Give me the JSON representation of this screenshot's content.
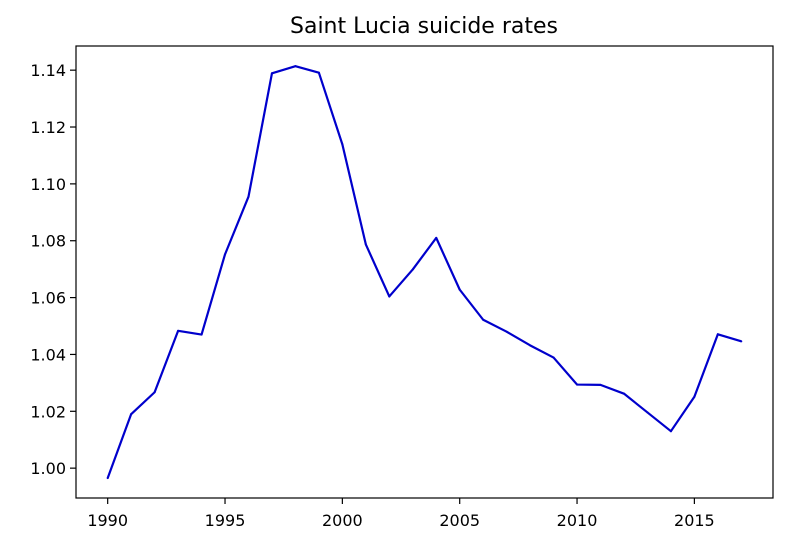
{
  "chart_data": {
    "type": "line",
    "title": "Saint Lucia suicide rates",
    "xlabel": "",
    "ylabel": "",
    "xlim": [
      1988.65,
      2018.35
    ],
    "ylim": [
      0.9895,
      1.1485
    ],
    "xticks": [
      1990,
      1995,
      2000,
      2005,
      2010,
      2015
    ],
    "xtick_labels": [
      "1990",
      "1995",
      "2000",
      "2005",
      "2010",
      "2015"
    ],
    "yticks": [
      1.0,
      1.02,
      1.04,
      1.06,
      1.08,
      1.1,
      1.12,
      1.14
    ],
    "ytick_labels": [
      "1.00",
      "1.02",
      "1.04",
      "1.06",
      "1.08",
      "1.10",
      "1.12",
      "1.14"
    ],
    "grid": false,
    "line_color": "#0000cc",
    "series": [
      {
        "x": [
          1990,
          1991,
          1992,
          1993,
          1994,
          1995,
          1996,
          1997,
          1998,
          1999,
          2000,
          2001,
          2002,
          2003,
          2004,
          2005,
          2006,
          2007,
          2008,
          2009,
          2010,
          2011,
          2012,
          2013,
          2014,
          2015,
          2016,
          2017
        ],
        "values": [
          0.9965,
          1.019,
          1.0267,
          1.0483,
          1.047,
          1.0752,
          1.0955,
          1.1389,
          1.1414,
          1.1391,
          1.1139,
          1.0787,
          1.0604,
          1.0699,
          1.081,
          1.0628,
          1.0522,
          1.048,
          1.0432,
          1.0389,
          1.0294,
          1.0293,
          1.0262,
          1.0196,
          1.013,
          1.0251,
          1.0471,
          1.0446
        ]
      }
    ]
  }
}
